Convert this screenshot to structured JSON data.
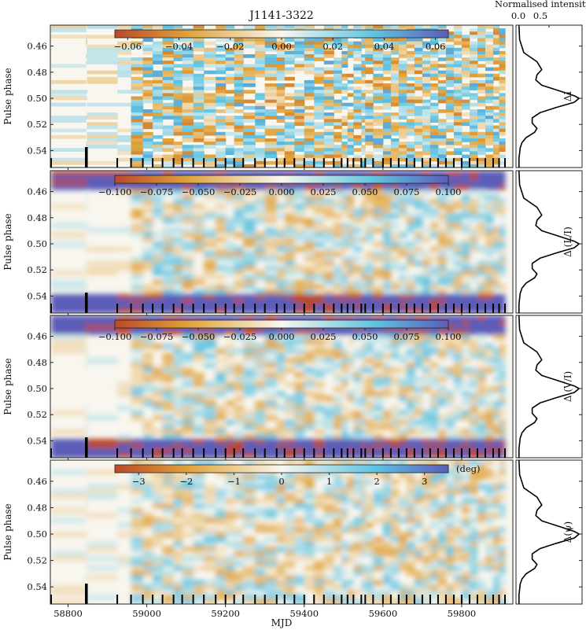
{
  "figure": {
    "title": "J1141-3322",
    "xlabel": "MJD",
    "profile_axis_label": "Normalised intensity",
    "profile_ticks": [
      "0.0",
      "0.5"
    ]
  },
  "chart_data": [
    {
      "type": "heatmap",
      "panel": "delta-I",
      "title": "J1141-3322",
      "ylabel": "Pulse phase",
      "side_label": "ΔI",
      "colorbar_ticks": [
        "−0.06",
        "−0.04",
        "−0.02",
        "0.00",
        "0.02",
        "0.04",
        "0.06"
      ],
      "colorbar_values": [
        -0.06,
        -0.04,
        -0.02,
        0.0,
        0.02,
        0.04,
        0.06
      ],
      "colorbar_range": [
        -0.065,
        0.065
      ],
      "colorbar_unit": "",
      "y_ticks": [
        "0.46",
        "0.48",
        "0.50",
        "0.52",
        "0.54"
      ],
      "y_values": [
        0.46,
        0.48,
        0.5,
        0.52,
        0.54
      ],
      "y_range": [
        0.444,
        0.553
      ],
      "x_range": [
        58755,
        59930
      ]
    },
    {
      "type": "heatmap",
      "panel": "delta-linear-pol",
      "ylabel": "Pulse phase",
      "side_label": "Δ (L/I)",
      "colorbar_ticks": [
        "−0.100",
        "−0.075",
        "−0.050",
        "−0.025",
        "0.000",
        "0.025",
        "0.050",
        "0.075",
        "0.100"
      ],
      "colorbar_values": [
        -0.1,
        -0.075,
        -0.05,
        -0.025,
        0.0,
        0.025,
        0.05,
        0.075,
        0.1
      ],
      "colorbar_range": [
        -0.1,
        0.1
      ],
      "colorbar_unit": "",
      "y_ticks": [
        "0.46",
        "0.48",
        "0.50",
        "0.52",
        "0.54"
      ],
      "y_values": [
        0.46,
        0.48,
        0.5,
        0.52,
        0.54
      ],
      "y_range": [
        0.444,
        0.553
      ],
      "x_range": [
        58755,
        59930
      ]
    },
    {
      "type": "heatmap",
      "panel": "delta-circular-pol",
      "ylabel": "Pulse phase",
      "side_label": "Δ (V/I)",
      "colorbar_ticks": [
        "−0.100",
        "−0.075",
        "−0.050",
        "−0.025",
        "0.000",
        "0.025",
        "0.050",
        "0.075",
        "0.100"
      ],
      "colorbar_values": [
        -0.1,
        -0.075,
        -0.05,
        -0.025,
        0.0,
        0.025,
        0.05,
        0.075,
        0.1
      ],
      "colorbar_range": [
        -0.1,
        0.1
      ],
      "colorbar_unit": "",
      "y_ticks": [
        "0.46",
        "0.48",
        "0.50",
        "0.52",
        "0.54"
      ],
      "y_values": [
        0.46,
        0.48,
        0.5,
        0.52,
        0.54
      ],
      "y_range": [
        0.444,
        0.553
      ],
      "x_range": [
        58755,
        59930
      ]
    },
    {
      "type": "heatmap",
      "panel": "delta-pa",
      "ylabel": "Pulse phase",
      "side_label": "Δ(ψ)",
      "colorbar_ticks": [
        "−3",
        "−2",
        "−1",
        "0",
        "1",
        "2",
        "3"
      ],
      "colorbar_values": [
        -3,
        -2,
        -1,
        0,
        1,
        2,
        3
      ],
      "colorbar_range": [
        -3.5,
        3.5
      ],
      "colorbar_unit": "(deg)",
      "y_ticks": [
        "0.46",
        "0.48",
        "0.50",
        "0.52",
        "0.54"
      ],
      "y_values": [
        0.46,
        0.48,
        0.5,
        0.52,
        0.54
      ],
      "y_range": [
        0.444,
        0.553
      ],
      "x_range": [
        58755,
        59930
      ],
      "x_ticks": [
        "58800",
        "59000",
        "59200",
        "59400",
        "59600",
        "59800"
      ],
      "x_values": [
        58800,
        59000,
        59200,
        59400,
        59600,
        59800
      ]
    }
  ],
  "observation_epochs": [
    58757,
    58845,
    58848,
    58925,
    58960,
    58990,
    59015,
    59040,
    59068,
    59090,
    59118,
    59145,
    59175,
    59200,
    59222,
    59245,
    59275,
    59300,
    59330,
    59350,
    59375,
    59400,
    59425,
    59450,
    59475,
    59495,
    59510,
    59525,
    59545,
    59555,
    59575,
    59600,
    59620,
    59640,
    59660,
    59680,
    59700,
    59720,
    59740,
    59760,
    59780,
    59800,
    59820,
    59840,
    59860,
    59880,
    59895,
    59910
  ],
  "profile": {
    "phase": [
      0.444,
      0.455,
      0.465,
      0.472,
      0.478,
      0.482,
      0.486,
      0.49,
      0.494,
      0.498,
      0.5,
      0.503,
      0.507,
      0.511,
      0.515,
      0.519,
      0.523,
      0.526,
      0.53,
      0.534,
      0.538,
      0.542,
      0.546,
      0.553
    ],
    "intensity": [
      0.0,
      0.01,
      0.08,
      0.3,
      0.38,
      0.3,
      0.28,
      0.38,
      0.65,
      0.92,
      1.0,
      0.92,
      0.62,
      0.35,
      0.22,
      0.22,
      0.3,
      0.26,
      0.12,
      0.05,
      0.02,
      0.01,
      0.0,
      0.0
    ],
    "x_range": [
      -0.05,
      1.05
    ]
  },
  "colors": {
    "negative": "#b84a2b",
    "mid_negative": "#e0a33a",
    "zero": "#f8f6ef",
    "mid_positive": "#5fc3e0",
    "positive": "#5b5db8"
  }
}
